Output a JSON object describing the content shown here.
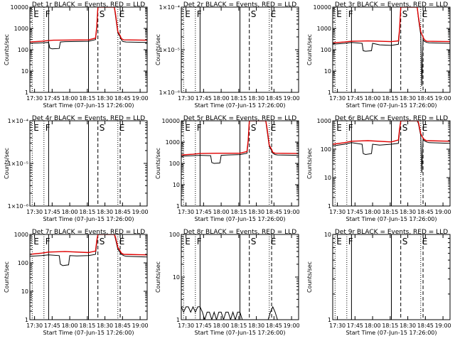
{
  "colors": {
    "events": "#000000",
    "lld": "#e00000",
    "axes": "#000000",
    "background": "#ffffff"
  },
  "shared": {
    "xlabel": "Start Time (07-Jun-15 17:26:00)",
    "ylabel": "Counts/sec",
    "x_ticks": [
      "17:30",
      "17:45",
      "18:00",
      "18:15",
      "18:30",
      "18:45",
      "19:00"
    ],
    "x_tick_minutes": [
      4,
      19,
      34,
      49,
      64,
      79,
      94
    ],
    "x_range_minutes": [
      0,
      100
    ],
    "markers": [
      {
        "label": "E",
        "minute": 2,
        "style": "dotted"
      },
      {
        "label": "F",
        "minute": 12,
        "style": "dotted"
      },
      {
        "label": "",
        "minute": 16,
        "style": "solid"
      },
      {
        "label": "",
        "minute": 50,
        "style": "solid"
      },
      {
        "label": "S",
        "minute": 58,
        "style": "dashed"
      },
      {
        "label": "E",
        "minute": 75,
        "style": "dotted"
      },
      {
        "label": "",
        "minute": 77,
        "style": "dashed"
      }
    ]
  },
  "chart_data": [
    {
      "type": "line",
      "title": "Det 1r BLACK = Events, RED = LLD",
      "scale": "log",
      "ylim": [
        1,
        10000
      ],
      "y_tick_labels": [
        "1",
        "10",
        "100",
        "1000",
        "10000"
      ],
      "series": [
        {
          "name": "Events",
          "color": "#000000",
          "x": [
            0,
            10,
            16,
            17,
            19,
            25,
            26,
            30,
            50,
            56,
            57,
            58,
            60,
            72,
            73,
            75,
            77,
            78,
            79,
            80,
            82,
            100
          ],
          "y": [
            200,
            210,
            220,
            120,
            110,
            115,
            230,
            240,
            250,
            300,
            1000,
            10000,
            10000,
            10000,
            4000,
            600,
            400,
            300,
            250,
            240,
            230,
            220
          ]
        },
        {
          "name": "LLD",
          "color": "#e00000",
          "x": [
            0,
            10,
            16,
            20,
            30,
            50,
            56,
            57,
            58,
            60,
            72,
            73,
            75,
            77,
            78,
            80,
            100
          ],
          "y": [
            230,
            250,
            270,
            280,
            285,
            290,
            350,
            1200,
            10000,
            10000,
            10000,
            5000,
            700,
            450,
            330,
            290,
            280
          ]
        }
      ]
    },
    {
      "type": "line",
      "title": "Det 2r BLACK = Events, RED = LLD",
      "scale": "log",
      "ylim": [
        1e-06,
        0.0001
      ],
      "y_tick_labels": [
        "1×10⁻⁶",
        "1×10⁻⁵",
        "1×10⁻⁴"
      ],
      "series": []
    },
    {
      "type": "line",
      "title": "Det 3r BLACK = Events, RED = LLD",
      "scale": "log",
      "ylim": [
        1,
        10000
      ],
      "y_tick_labels": [
        "1",
        "10",
        "100",
        "1000",
        "10000"
      ],
      "series": [
        {
          "name": "Events",
          "color": "#000000",
          "x": [
            0,
            10,
            16,
            25,
            26,
            28,
            33,
            34,
            40,
            50,
            56,
            57,
            58,
            62,
            72,
            73,
            75,
            76,
            77,
            78,
            80,
            82,
            100
          ],
          "y": [
            180,
            200,
            220,
            200,
            90,
            85,
            90,
            200,
            170,
            160,
            180,
            700,
            10000,
            10000,
            10000,
            3000,
            500,
            2,
            300,
            250,
            220,
            210,
            200
          ]
        },
        {
          "name": "LLD",
          "color": "#e00000",
          "x": [
            0,
            10,
            16,
            30,
            50,
            56,
            57,
            58,
            62,
            72,
            73,
            75,
            77,
            78,
            80,
            100
          ],
          "y": [
            210,
            230,
            250,
            260,
            240,
            260,
            900,
            10000,
            10000,
            10000,
            3500,
            700,
            400,
            300,
            250,
            240
          ]
        }
      ]
    },
    {
      "type": "line",
      "title": "Det 4r BLACK = Events, RED = LLD",
      "scale": "log",
      "ylim": [
        1e-06,
        0.0001
      ],
      "y_tick_labels": [
        "1×10⁻⁶",
        "1×10⁻⁵",
        "1×10⁻⁴"
      ],
      "series": []
    },
    {
      "type": "line",
      "title": "Det 5r BLACK = Events, RED = LLD",
      "scale": "log",
      "ylim": [
        1,
        10000
      ],
      "y_tick_labels": [
        "1",
        "10",
        "100",
        "1000",
        "10000"
      ],
      "series": [
        {
          "name": "Events",
          "color": "#000000",
          "x": [
            0,
            10,
            16,
            25,
            26,
            28,
            33,
            34,
            40,
            50,
            56,
            57,
            58,
            60,
            72,
            73,
            75,
            77,
            78,
            80,
            82,
            100
          ],
          "y": [
            220,
            230,
            240,
            230,
            110,
            100,
            105,
            240,
            250,
            260,
            300,
            1000,
            10000,
            10000,
            10000,
            4000,
            600,
            400,
            300,
            260,
            250,
            240
          ]
        },
        {
          "name": "LLD",
          "color": "#e00000",
          "x": [
            0,
            10,
            16,
            30,
            50,
            56,
            57,
            58,
            60,
            72,
            73,
            75,
            77,
            78,
            80,
            100
          ],
          "y": [
            250,
            270,
            290,
            300,
            300,
            360,
            1200,
            10000,
            10000,
            10000,
            5000,
            700,
            450,
            330,
            300,
            290
          ]
        }
      ]
    },
    {
      "type": "line",
      "title": "Det 6r BLACK = Events, RED = LLD",
      "scale": "log",
      "ylim": [
        1,
        1000
      ],
      "y_tick_labels": [
        "1",
        "10",
        "100",
        "1000"
      ],
      "series": [
        {
          "name": "Events",
          "color": "#000000",
          "x": [
            0,
            10,
            16,
            25,
            26,
            28,
            33,
            34,
            40,
            50,
            56,
            57,
            58,
            62,
            72,
            73,
            75,
            76,
            77,
            78,
            80,
            82,
            100
          ],
          "y": [
            130,
            150,
            170,
            150,
            70,
            65,
            70,
            150,
            140,
            150,
            160,
            400,
            1000,
            1000,
            1000,
            800,
            300,
            15,
            220,
            200,
            180,
            170,
            160
          ]
        },
        {
          "name": "LLD",
          "color": "#e00000",
          "x": [
            0,
            10,
            16,
            30,
            50,
            56,
            57,
            58,
            62,
            72,
            73,
            75,
            77,
            78,
            80,
            100
          ],
          "y": [
            150,
            170,
            190,
            200,
            180,
            210,
            500,
            1000,
            1000,
            1000,
            900,
            350,
            250,
            220,
            200,
            190
          ]
        }
      ]
    },
    {
      "type": "line",
      "title": "Det 7r BLACK = Events, RED = LLD",
      "scale": "log",
      "ylim": [
        1,
        1000
      ],
      "y_tick_labels": [
        "1",
        "10",
        "100",
        "1000"
      ],
      "series": [
        {
          "name": "Events",
          "color": "#000000",
          "x": [
            0,
            10,
            16,
            25,
            26,
            28,
            33,
            34,
            40,
            50,
            56,
            57,
            58,
            62,
            72,
            73,
            75,
            77,
            78,
            80,
            82,
            100
          ],
          "y": [
            170,
            180,
            190,
            180,
            90,
            80,
            85,
            180,
            175,
            180,
            200,
            500,
            1000,
            1000,
            1000,
            700,
            300,
            230,
            200,
            180,
            170,
            160
          ]
        },
        {
          "name": "LLD",
          "color": "#e00000",
          "x": [
            0,
            10,
            16,
            30,
            50,
            56,
            57,
            58,
            62,
            72,
            73,
            75,
            77,
            78,
            80,
            100
          ],
          "y": [
            200,
            220,
            240,
            250,
            230,
            260,
            600,
            1000,
            1000,
            1000,
            800,
            350,
            260,
            220,
            200,
            190
          ]
        }
      ]
    },
    {
      "type": "line",
      "title": "Det 8r BLACK = Events, RED = LLD",
      "scale": "log",
      "ylim": [
        1,
        100
      ],
      "y_tick_labels": [
        "1",
        "10",
        "100"
      ],
      "series": [
        {
          "name": "Events",
          "color": "#000000",
          "x": [
            0,
            2,
            4,
            6,
            8,
            10,
            12,
            14,
            16,
            18,
            20,
            22,
            24,
            26,
            28,
            30,
            32,
            34,
            36,
            38,
            40,
            42,
            44,
            46,
            48,
            50,
            52,
            54,
            56,
            58,
            60,
            62,
            64,
            66,
            68,
            70,
            72,
            74,
            76,
            78,
            80,
            82,
            84,
            86,
            88,
            90,
            92,
            94
          ],
          "y": [
            2,
            1.5,
            2,
            2,
            1.5,
            2,
            1.5,
            2,
            2,
            1.5,
            1,
            1.5,
            1.5,
            1,
            1.5,
            1,
            1.5,
            1.5,
            1,
            1.5,
            1.5,
            1,
            1.5,
            1,
            1.5,
            1.5,
            1,
            1,
            1,
            1,
            1,
            1,
            1,
            1,
            1,
            1,
            1,
            1,
            1.5,
            2,
            1.5,
            1,
            1,
            1,
            1,
            1,
            1,
            1
          ]
        }
      ]
    },
    {
      "type": "line",
      "title": "Det 9r BLACK = Events, RED = LLD",
      "scale": "log",
      "ylim": [
        1,
        10
      ],
      "y_tick_labels": [
        "1",
        "10"
      ],
      "series": []
    }
  ]
}
